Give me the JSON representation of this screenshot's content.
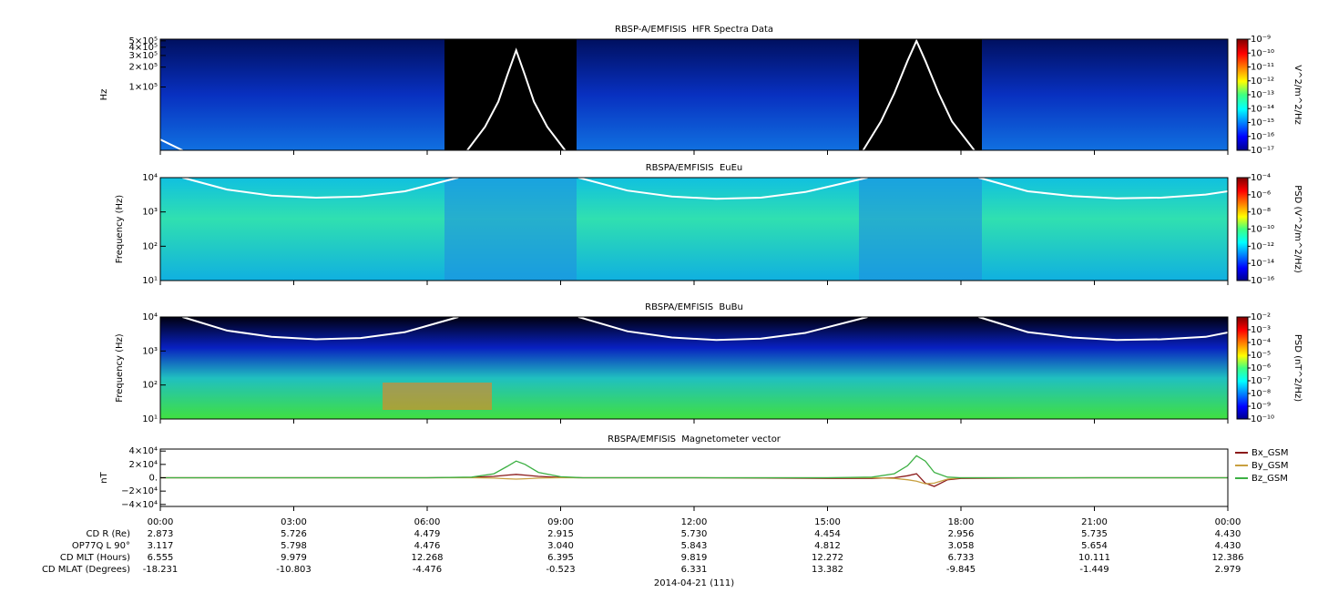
{
  "chart_data": [
    {
      "type": "spectrogram",
      "title": "RBSP-A/EMFISIS  HFR Spectra Data",
      "ylabel": "Hz",
      "ylog": true,
      "ylim": [
        11000,
        530000
      ],
      "yticks": [
        {
          "value": 100000,
          "label": "1×10⁵"
        },
        {
          "value": 200000,
          "label": "2×10⁵"
        },
        {
          "value": 300000,
          "label": "3×10⁵"
        },
        {
          "value": 400000,
          "label": "4×10⁵"
        },
        {
          "value": 500000,
          "label": "5×10⁵"
        }
      ],
      "colorbar": {
        "label": "V^2/m^2/Hz",
        "log": true,
        "clim": [
          1e-17,
          1e-09
        ],
        "ticks": [
          {
            "value": 1e-17,
            "label": "10⁻¹⁷"
          },
          {
            "value": 1e-16,
            "label": "10⁻¹⁶"
          },
          {
            "value": 1e-15,
            "label": "10⁻¹⁵"
          },
          {
            "value": 1e-14,
            "label": "10⁻¹⁴"
          },
          {
            "value": 1e-13,
            "label": "10⁻¹³"
          },
          {
            "value": 1e-12,
            "label": "10⁻¹²"
          },
          {
            "value": 1e-11,
            "label": "10⁻¹¹"
          },
          {
            "value": 1e-10,
            "label": "10⁻¹⁰"
          },
          {
            "value": 1e-09,
            "label": "10⁻⁹"
          }
        ]
      },
      "x": [
        0,
        0.5,
        3,
        6.9,
        7.3,
        7.6,
        7.8,
        8,
        8.2,
        8.4,
        8.7,
        9.1,
        12,
        15.8,
        16.2,
        16.5,
        16.8,
        17,
        17.2,
        17.5,
        17.8,
        18.3
      ],
      "series": [
        {
          "color": "#ffffff",
          "values": [
            16000,
            11000,
            null,
            11000,
            25000,
            60000,
            150000,
            360000,
            150000,
            60000,
            25000,
            11000,
            null,
            11000,
            30000,
            80000,
            250000,
            500000,
            250000,
            80000,
            30000,
            11000
          ]
        }
      ]
    },
    {
      "type": "spectrogram",
      "title": "RBSPA/EMFISIS  EuEu",
      "ylabel": "Frequency (Hz)",
      "ylog": true,
      "ylim": [
        10,
        10000
      ],
      "yticks": [
        {
          "value": 10,
          "label": "10¹"
        },
        {
          "value": 100,
          "label": "10²"
        },
        {
          "value": 1000,
          "label": "10³"
        },
        {
          "value": 10000,
          "label": "10⁴"
        }
      ],
      "colorbar": {
        "label": "PSD (V^2/m^2/Hz)",
        "log": true,
        "clim": [
          1e-16,
          0.0001
        ],
        "ticks": [
          {
            "value": 1e-16,
            "label": "10⁻¹⁶"
          },
          {
            "value": 1e-14,
            "label": "10⁻¹⁴"
          },
          {
            "value": 1e-12,
            "label": "10⁻¹²"
          },
          {
            "value": 1e-10,
            "label": "10⁻¹⁰"
          },
          {
            "value": 1e-08,
            "label": "10⁻⁸"
          },
          {
            "value": 1e-06,
            "label": "10⁻⁶"
          },
          {
            "value": 0.0001,
            "label": "10⁻⁴"
          }
        ]
      },
      "x": [
        0.5,
        1.5,
        2.5,
        3.5,
        4.5,
        5.5,
        6.7,
        8,
        9.4,
        10.5,
        11.5,
        12.5,
        13.5,
        14.5,
        15.9,
        17,
        18.4,
        19.5,
        20.5,
        21.5,
        22.5,
        23.5,
        24
      ],
      "series": [
        {
          "color": "#ffffff",
          "values": [
            10000,
            4500,
            3000,
            2600,
            2800,
            4000,
            10000,
            null,
            10000,
            4200,
            2800,
            2400,
            2600,
            3800,
            10000,
            null,
            10000,
            4000,
            2900,
            2500,
            2600,
            3200,
            4000
          ]
        }
      ]
    },
    {
      "type": "spectrogram",
      "title": "RBSPA/EMFISIS  BuBu",
      "ylabel": "Frequency (Hz)",
      "ylog": true,
      "ylim": [
        10,
        10000
      ],
      "yticks": [
        {
          "value": 10,
          "label": "10¹"
        },
        {
          "value": 100,
          "label": "10²"
        },
        {
          "value": 1000,
          "label": "10³"
        },
        {
          "value": 10000,
          "label": "10⁴"
        }
      ],
      "colorbar": {
        "label": "PSD (nT^2/Hz)",
        "log": true,
        "clim": [
          1e-10,
          0.01
        ],
        "ticks": [
          {
            "value": 1e-10,
            "label": "10⁻¹⁰"
          },
          {
            "value": 1e-09,
            "label": "10⁻⁹"
          },
          {
            "value": 1e-08,
            "label": "10⁻⁸"
          },
          {
            "value": 1e-07,
            "label": "10⁻⁷"
          },
          {
            "value": 1e-06,
            "label": "10⁻⁶"
          },
          {
            "value": 1e-05,
            "label": "10⁻⁵"
          },
          {
            "value": 0.0001,
            "label": "10⁻⁴"
          },
          {
            "value": 0.001,
            "label": "10⁻³"
          },
          {
            "value": 0.01,
            "label": "10⁻²"
          }
        ]
      },
      "x": [
        0.5,
        1.5,
        2.5,
        3.5,
        4.5,
        5.5,
        6.7,
        8,
        9.4,
        10.5,
        11.5,
        12.5,
        13.5,
        14.5,
        15.9,
        17,
        18.4,
        19.5,
        20.5,
        21.5,
        22.5,
        23.5,
        24
      ],
      "series": [
        {
          "color": "#ffffff",
          "values": [
            10000,
            4000,
            2600,
            2200,
            2400,
            3600,
            10000,
            null,
            10000,
            3800,
            2500,
            2100,
            2300,
            3400,
            10000,
            null,
            10000,
            3600,
            2500,
            2100,
            2200,
            2600,
            3500
          ]
        }
      ]
    },
    {
      "type": "line",
      "title": "RBSPA/EMFISIS  Magnetometer vector",
      "ylabel": "nT",
      "ylim": [
        -43000,
        43000
      ],
      "yticks": [
        {
          "value": -40000,
          "label": "−4×10⁴"
        },
        {
          "value": -20000,
          "label": "−2×10⁴"
        },
        {
          "value": 0,
          "label": "0."
        },
        {
          "value": 20000,
          "label": "2×10⁴"
        },
        {
          "value": 40000,
          "label": "4×10⁴"
        }
      ],
      "xlim": [
        0,
        24
      ],
      "xticks": [
        {
          "value": 0,
          "label": "00:00"
        },
        {
          "value": 3,
          "label": "03:00"
        },
        {
          "value": 6,
          "label": "06:00"
        },
        {
          "value": 9,
          "label": "09:00"
        },
        {
          "value": 12,
          "label": "12:00"
        },
        {
          "value": 15,
          "label": "15:00"
        },
        {
          "value": 18,
          "label": "18:00"
        },
        {
          "value": 21,
          "label": "21:00"
        },
        {
          "value": 24,
          "label": "00:00"
        }
      ],
      "legend": "right",
      "x": [
        0,
        3,
        6,
        7,
        7.5,
        7.8,
        8,
        8.2,
        8.5,
        9,
        9.5,
        12,
        15,
        16,
        16.5,
        16.8,
        17,
        17.2,
        17.4,
        17.7,
        18,
        21,
        24
      ],
      "series": [
        {
          "name": "Bx_GSM",
          "color": "#8b1a1a",
          "values": [
            0,
            0,
            0,
            500,
            2000,
            4000,
            5000,
            4000,
            2000,
            500,
            0,
            0,
            -1000,
            -1000,
            0,
            3000,
            6000,
            -8000,
            -13000,
            -3000,
            -1000,
            0,
            0
          ]
        },
        {
          "name": "By_GSM",
          "color": "#c8a040",
          "values": [
            0,
            0,
            0,
            0,
            -500,
            -1500,
            -2000,
            -1500,
            -500,
            0,
            0,
            0,
            0,
            0,
            -1000,
            -3000,
            -5000,
            -9000,
            -8000,
            -2000,
            0,
            0,
            0
          ]
        },
        {
          "name": "Bz_GSM",
          "color": "#3cb043",
          "values": [
            0,
            0,
            0,
            1000,
            6000,
            17000,
            25000,
            20000,
            8000,
            1500,
            0,
            0,
            0,
            1000,
            6000,
            18000,
            33000,
            25000,
            8000,
            1000,
            0,
            0,
            0
          ]
        }
      ]
    }
  ],
  "ephemeris": {
    "rows": [
      {
        "label": "CD R (Re)",
        "values": [
          "2.873",
          "5.726",
          "4.479",
          "2.915",
          "5.730",
          "4.454",
          "2.956",
          "5.735",
          "4.430"
        ]
      },
      {
        "label": "OP77Q L 90°",
        "values": [
          "3.117",
          "5.798",
          "4.476",
          "3.040",
          "5.843",
          "4.812",
          "3.058",
          "5.654",
          "4.430"
        ]
      },
      {
        "label": "CD MLT (Hours)",
        "values": [
          "6.555",
          "9.979",
          "12.268",
          "6.395",
          "9.819",
          "12.272",
          "6.733",
          "10.111",
          "12.386"
        ]
      },
      {
        "label": "CD MLAT (Degrees)",
        "values": [
          "-18.231",
          "-10.803",
          "-4.476",
          "-0.523",
          "6.331",
          "13.382",
          "-9.845",
          "-1.449",
          "2.979"
        ]
      }
    ],
    "date": "2014-04-21 (111)"
  }
}
